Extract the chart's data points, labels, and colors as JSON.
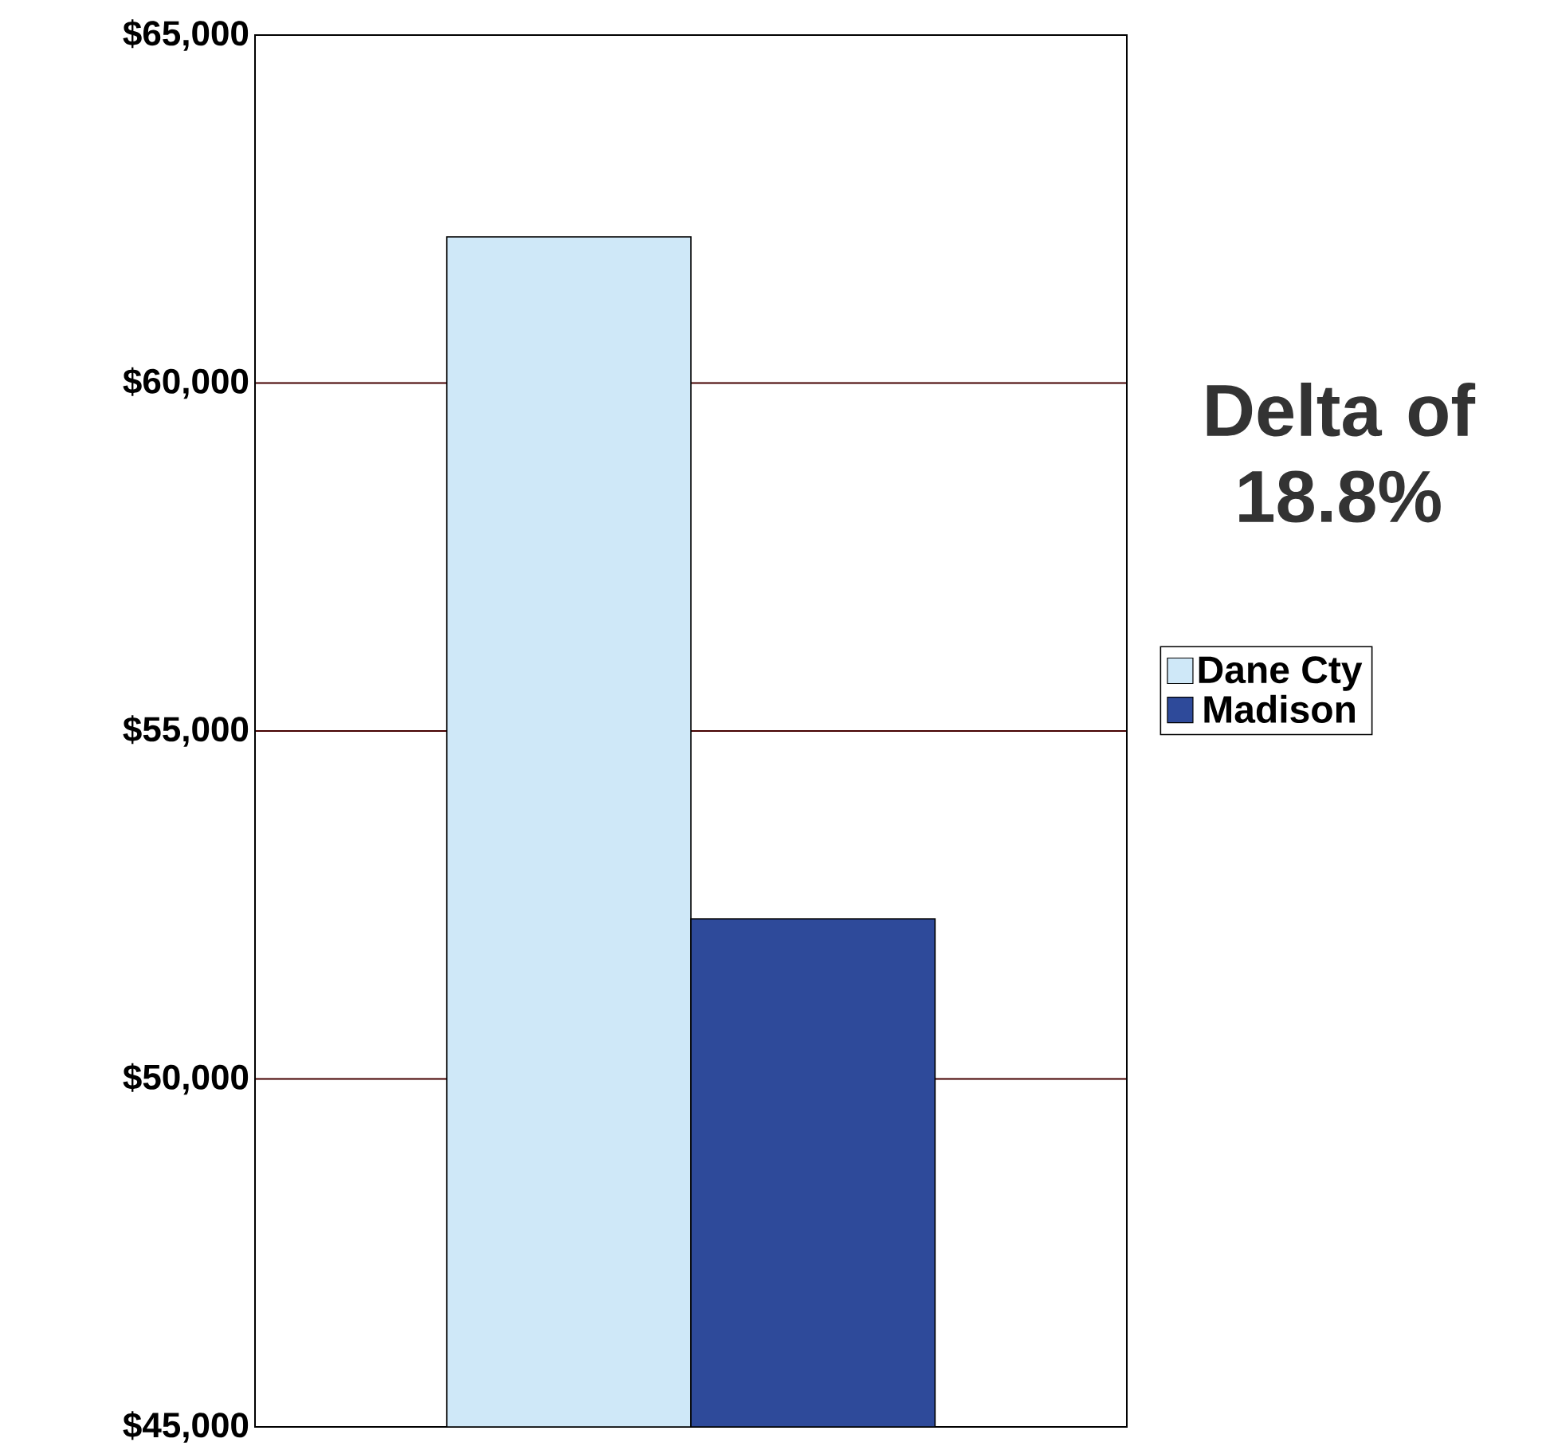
{
  "chart_data": {
    "type": "bar",
    "categories": [
      null
    ],
    "series": [
      {
        "name": "Dane Cty",
        "color": "#cfe8f8",
        "values": [
          62100
        ]
      },
      {
        "name": "Madison",
        "color": "#2e4a9a",
        "values": [
          52300
        ]
      }
    ],
    "ylim": [
      45000,
      65000
    ],
    "yticks": [
      {
        "value": 45000,
        "label": "$45,000"
      },
      {
        "value": 50000,
        "label": "$50,000"
      },
      {
        "value": 55000,
        "label": "$55,000"
      },
      {
        "value": 60000,
        "label": "$60,000"
      },
      {
        "value": 65000,
        "label": "$65,000"
      }
    ],
    "grid": "y",
    "legend": "right",
    "annotations": [
      "Delta of 18.8%"
    ]
  }
}
